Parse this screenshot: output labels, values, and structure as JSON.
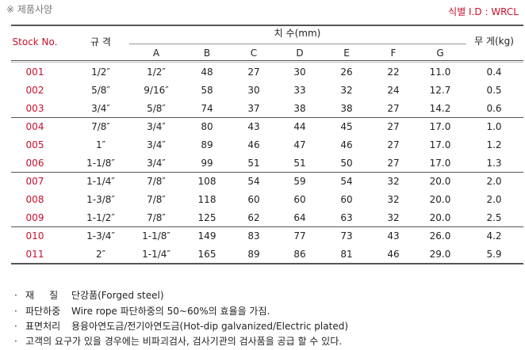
{
  "header": {
    "title": "※ 제품사양",
    "id_label": "식별 I.D : WRCL"
  },
  "table": {
    "headers": {
      "stock": "Stock No.",
      "spec": "규 격",
      "dims": "치 수(mm)",
      "weight": "무 게(kg)",
      "dim_cols": [
        "A",
        "B",
        "C",
        "D",
        "E",
        "F",
        "G"
      ]
    },
    "groups": [
      [
        [
          "001",
          "1/2″",
          "1/2″",
          "48",
          "27",
          "30",
          "26",
          "22",
          "11.0",
          "0.4"
        ],
        [
          "002",
          "5/8″",
          "9/16″",
          "58",
          "30",
          "33",
          "32",
          "24",
          "12.7",
          "0.5"
        ],
        [
          "003",
          "3/4″",
          "5/8″",
          "74",
          "37",
          "38",
          "38",
          "27",
          "14.2",
          "0.6"
        ]
      ],
      [
        [
          "004",
          "7/8″",
          "3/4″",
          "80",
          "43",
          "44",
          "45",
          "27",
          "17.0",
          "1.0"
        ],
        [
          "005",
          "1″",
          "3/4″",
          "89",
          "46",
          "47",
          "46",
          "27",
          "17.0",
          "1.2"
        ],
        [
          "006",
          "1-1/8″",
          "3/4″",
          "99",
          "51",
          "51",
          "50",
          "27",
          "17.0",
          "1.3"
        ]
      ],
      [
        [
          "007",
          "1-1/4″",
          "7/8″",
          "108",
          "54",
          "59",
          "54",
          "32",
          "20.0",
          "2.0"
        ],
        [
          "008",
          "1-3/8″",
          "7/8″",
          "118",
          "60",
          "60",
          "60",
          "32",
          "20.0",
          "2.0"
        ],
        [
          "009",
          "1-1/2″",
          "7/8″",
          "125",
          "62",
          "64",
          "63",
          "32",
          "20.0",
          "2.5"
        ]
      ],
      [
        [
          "010",
          "1-3/4″",
          "1-1/8″",
          "149",
          "83",
          "77",
          "73",
          "43",
          "26.0",
          "4.2"
        ],
        [
          "011",
          "2″",
          "1-1/4″",
          "165",
          "89",
          "86",
          "81",
          "46",
          "29.0",
          "5.9"
        ]
      ]
    ]
  },
  "notes": [
    {
      "label": "재     질",
      "text": "단강품(Forged steel)"
    },
    {
      "label": "파단하중",
      "text": "Wire rope 파단하중의 50~60%의 효율을 가짐."
    },
    {
      "label": "표면처리",
      "text": "용융아연도금/전기아연도금(Hot-dip galvanized/Electric plated)"
    },
    {
      "text": "고객의 요구가 있을 경우에는 비파괴검사, 검사기관의 검사품을 공급 할 수 있다."
    }
  ]
}
